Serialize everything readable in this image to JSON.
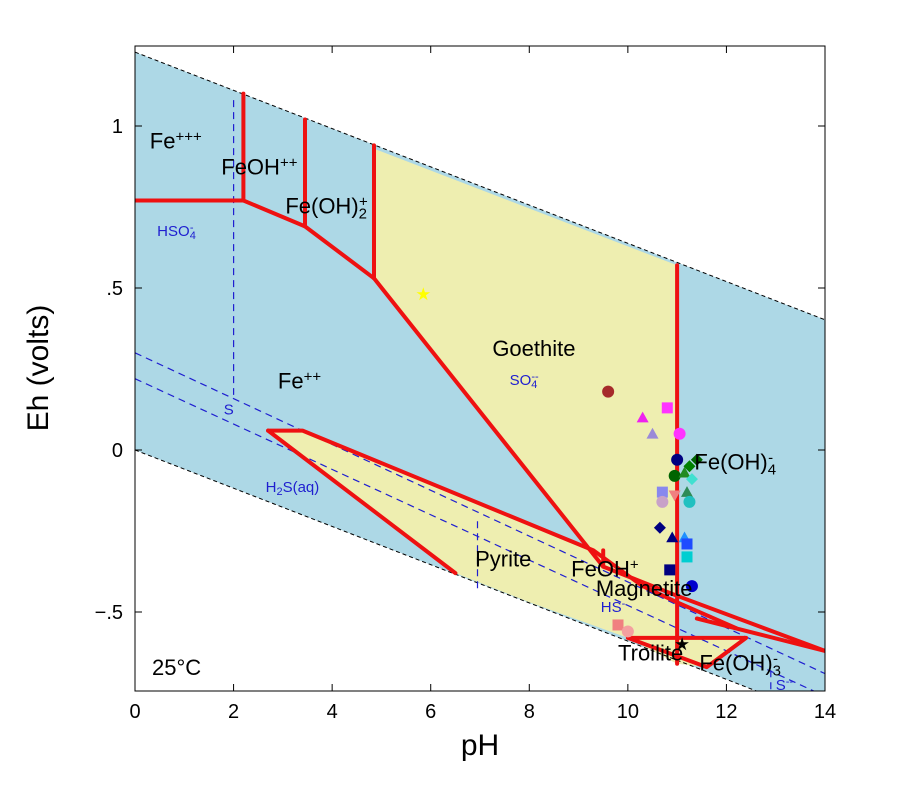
{
  "chart_data": {
    "type": "scatter",
    "chart_kind": "Eh-pH (Pourbaix) predominance diagram",
    "xlabel": "pH",
    "ylabel": "Eh (volts)",
    "xlim": [
      0,
      14
    ],
    "ylim": [
      -0.75,
      1.25
    ],
    "x_ticks": [
      0,
      2,
      4,
      6,
      8,
      10,
      12,
      14
    ],
    "x_tick_labels": [
      "0",
      "2",
      "4",
      "6",
      "8",
      "10",
      "12",
      "14"
    ],
    "y_ticks": [
      -0.5,
      0,
      0.5,
      1
    ],
    "y_tick_labels": [
      "−.5",
      "0",
      ".5",
      "1"
    ],
    "temperature_label": "25°C",
    "colors": {
      "water_field": "#add8e6",
      "mineral_field": "#eeeeb0",
      "iron_boundary": "#ee1111",
      "sulfur_boundary": "#1f1fd0",
      "water_limit": "#000000"
    },
    "water_stability_limits": {
      "upper": [
        [
          0,
          1.228
        ],
        [
          14,
          0.402
        ]
      ],
      "lower": [
        [
          0,
          0.0
        ],
        [
          14,
          -0.826
        ]
      ]
    },
    "regions": [
      {
        "name": "Goethite",
        "fill": "mineral",
        "polygon": [
          [
            4.85,
            0.93
          ],
          [
            11.0,
            0.57
          ],
          [
            11.0,
            -0.45
          ],
          [
            9.5,
            -0.36
          ],
          [
            4.85,
            0.53
          ]
        ]
      },
      {
        "name": "Pyrite",
        "fill": "mineral",
        "polygon": [
          [
            2.7,
            0.06
          ],
          [
            3.4,
            0.06
          ],
          [
            9.3,
            -0.31
          ],
          [
            10.3,
            -0.42
          ],
          [
            11.0,
            -0.47
          ],
          [
            11.0,
            -0.66
          ],
          [
            10.0,
            -0.58
          ],
          [
            8.0,
            -0.47
          ],
          [
            6.5,
            -0.38
          ],
          [
            2.7,
            0.06
          ]
        ]
      },
      {
        "name": "Troilite",
        "fill": "mineral",
        "polygon": [
          [
            10.0,
            -0.58
          ],
          [
            12.4,
            -0.58
          ],
          [
            11.6,
            -0.67
          ],
          [
            11.0,
            -0.66
          ],
          [
            10.0,
            -0.58
          ]
        ]
      }
    ],
    "iron_boundaries": [
      [
        [
          0,
          0.77
        ],
        [
          2.2,
          0.77
        ],
        [
          3.45,
          0.69
        ],
        [
          4.85,
          0.53
        ],
        [
          9.5,
          -0.36
        ],
        [
          11.0,
          -0.45
        ],
        [
          14,
          -0.62
        ]
      ],
      [
        [
          2.2,
          1.1
        ],
        [
          2.2,
          0.77
        ]
      ],
      [
        [
          3.45,
          1.02
        ],
        [
          3.45,
          0.69
        ]
      ],
      [
        [
          4.85,
          0.94
        ],
        [
          4.85,
          0.53
        ]
      ],
      [
        [
          11.0,
          0.57
        ],
        [
          11.0,
          -0.66
        ]
      ],
      [
        [
          2.7,
          0.06
        ],
        [
          3.4,
          0.06
        ],
        [
          9.3,
          -0.31
        ],
        [
          10.3,
          -0.42
        ],
        [
          11.0,
          -0.47
        ],
        [
          12.2,
          -0.55
        ]
      ],
      [
        [
          2.7,
          0.06
        ],
        [
          6.5,
          -0.38
        ]
      ],
      [
        [
          9.5,
          -0.36
        ],
        [
          9.5,
          -0.31
        ]
      ],
      [
        [
          10.0,
          -0.58
        ],
        [
          12.4,
          -0.58
        ],
        [
          11.6,
          -0.67
        ],
        [
          10.0,
          -0.58
        ]
      ],
      [
        [
          11.4,
          -0.52
        ],
        [
          14,
          -0.62
        ]
      ]
    ],
    "sulfur_boundaries": [
      [
        [
          2.0,
          1.08
        ],
        [
          2.0,
          0.17
        ]
      ],
      [
        [
          0,
          0.3
        ],
        [
          14,
          -0.69
        ]
      ],
      [
        [
          0,
          0.22
        ],
        [
          14,
          -0.76
        ]
      ],
      [
        [
          6.95,
          -0.22
        ],
        [
          6.95,
          -0.43
        ]
      ],
      [
        [
          12.9,
          -0.68
        ],
        [
          12.9,
          -0.75
        ]
      ]
    ],
    "field_labels": [
      {
        "text": "Fe",
        "sup": "+++",
        "x": 0.3,
        "y": 0.93
      },
      {
        "text": "FeOH",
        "sup": "++",
        "x": 1.75,
        "y": 0.85
      },
      {
        "text": "Fe(OH)",
        "sub": "2",
        "sup": "+",
        "x": 3.05,
        "y": 0.73
      },
      {
        "text": "Fe",
        "sup": "++",
        "x": 2.9,
        "y": 0.19
      },
      {
        "text": "Goethite",
        "x": 7.25,
        "y": 0.29
      },
      {
        "text": "Pyrite",
        "x": 6.9,
        "y": -0.36
      },
      {
        "text": "FeOH",
        "sup": "+",
        "x": 8.85,
        "y": -0.39
      },
      {
        "text": "Magnetite",
        "x": 9.35,
        "y": -0.45
      },
      {
        "text": "Fe(OH)",
        "sub": "4",
        "sup": "-",
        "x": 11.35,
        "y": -0.06
      },
      {
        "text": "Troilite",
        "x": 9.8,
        "y": -0.65
      },
      {
        "text": "Fe(OH)",
        "sub": "3",
        "sup": "-",
        "x": 11.45,
        "y": -0.68
      }
    ],
    "sulfur_labels": [
      {
        "text": "HSO",
        "sub": "4",
        "sup": "-",
        "x": 0.45,
        "y": 0.66
      },
      {
        "text": "SO",
        "sub": "4",
        "sup": "--",
        "x": 7.6,
        "y": 0.2
      },
      {
        "text": "S",
        "x": 1.8,
        "y": 0.11
      },
      {
        "text": "H",
        "sub": "2",
        "post": "S(aq)",
        "x": 2.65,
        "y": -0.13
      },
      {
        "text": "HS",
        "sup": "-",
        "x": 9.45,
        "y": -0.5
      },
      {
        "text": "S",
        "sup": "--",
        "x": 13.0,
        "y": -0.74
      }
    ],
    "samples": [
      {
        "x": 5.85,
        "y": 0.48,
        "shape": "star",
        "color": "#ffff00"
      },
      {
        "x": 9.6,
        "y": 0.18,
        "shape": "circle",
        "color": "#a52a2a"
      },
      {
        "x": 10.3,
        "y": 0.1,
        "shape": "triangle",
        "color": "#ee22ee"
      },
      {
        "x": 10.8,
        "y": 0.13,
        "shape": "square",
        "color": "#ff33ff"
      },
      {
        "x": 10.5,
        "y": 0.05,
        "shape": "triangle",
        "color": "#9a8ad8"
      },
      {
        "x": 11.05,
        "y": 0.05,
        "shape": "circle",
        "color": "#ff33ff"
      },
      {
        "x": 11.0,
        "y": -0.03,
        "shape": "circle",
        "color": "#000080"
      },
      {
        "x": 11.25,
        "y": -0.05,
        "shape": "diamond",
        "color": "#008000"
      },
      {
        "x": 11.4,
        "y": -0.03,
        "shape": "diamond",
        "color": "#006400"
      },
      {
        "x": 10.95,
        "y": -0.08,
        "shape": "circle",
        "color": "#006400"
      },
      {
        "x": 11.15,
        "y": -0.07,
        "shape": "triangle",
        "color": "#228b22"
      },
      {
        "x": 11.3,
        "y": -0.09,
        "shape": "diamond",
        "color": "#40e0d0"
      },
      {
        "x": 10.7,
        "y": -0.13,
        "shape": "square",
        "color": "#8888ee"
      },
      {
        "x": 10.7,
        "y": -0.16,
        "shape": "circle",
        "color": "#c8a2c8"
      },
      {
        "x": 10.95,
        "y": -0.14,
        "shape": "triangle-down",
        "color": "#f08080"
      },
      {
        "x": 11.2,
        "y": -0.13,
        "shape": "triangle",
        "color": "#2e8b57"
      },
      {
        "x": 11.25,
        "y": -0.16,
        "shape": "circle",
        "color": "#20c0c0"
      },
      {
        "x": 10.65,
        "y": -0.24,
        "shape": "diamond",
        "color": "#000080"
      },
      {
        "x": 10.9,
        "y": -0.27,
        "shape": "triangle",
        "color": "#000080"
      },
      {
        "x": 11.15,
        "y": -0.27,
        "shape": "triangle",
        "color": "#1e90ff"
      },
      {
        "x": 11.2,
        "y": -0.29,
        "shape": "square",
        "color": "#1e4cff"
      },
      {
        "x": 11.2,
        "y": -0.33,
        "shape": "square",
        "color": "#00ced1"
      },
      {
        "x": 10.85,
        "y": -0.37,
        "shape": "square",
        "color": "#000080"
      },
      {
        "x": 11.3,
        "y": -0.42,
        "shape": "circle",
        "color": "#0000cd"
      },
      {
        "x": 9.8,
        "y": -0.54,
        "shape": "square",
        "color": "#f08080"
      },
      {
        "x": 10.0,
        "y": -0.56,
        "shape": "circle",
        "color": "#f4a0a0"
      },
      {
        "x": 11.1,
        "y": -0.6,
        "shape": "star",
        "color": "#000000"
      }
    ]
  }
}
